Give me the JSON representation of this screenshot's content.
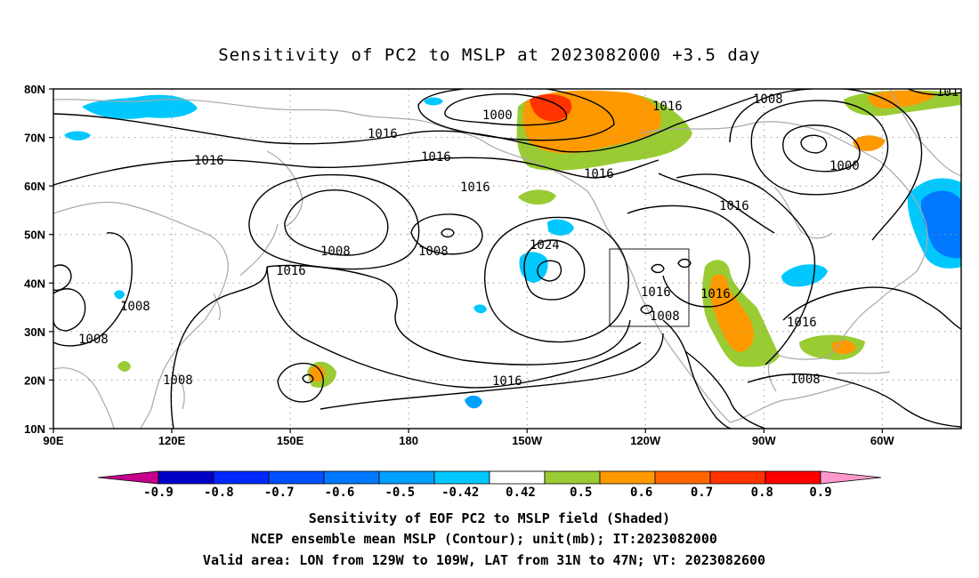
{
  "title": "Sensitivity of PC2 to MSLP at 2023082000 +3.5 day",
  "map": {
    "lat_ticks": [
      "80N",
      "70N",
      "60N",
      "50N",
      "40N",
      "30N",
      "20N",
      "10N"
    ],
    "lon_ticks": [
      "90E",
      "120E",
      "150E",
      "180",
      "150W",
      "120W",
      "90W",
      "60W"
    ],
    "contour_labels": [
      "1000",
      "1016",
      "1008",
      "1016",
      "1016",
      "1016",
      "1016",
      "1000",
      "1016",
      "1008",
      "1008",
      "1024",
      "1016",
      "1016",
      "1008",
      "1016",
      "1008",
      "1008",
      "1008",
      "1016",
      "1016",
      "1008",
      "101"
    ]
  },
  "colorbar": {
    "labels": [
      "-0.9",
      "-0.8",
      "-0.7",
      "-0.6",
      "-0.5",
      "-0.42",
      "0.42",
      "0.5",
      "0.6",
      "0.7",
      "0.8",
      "0.9"
    ],
    "colors": [
      "#c6008c",
      "#0000c8",
      "#0028ff",
      "#0050ff",
      "#0078ff",
      "#00a0ff",
      "#00c8ff",
      "#ffffff",
      "#99cc33",
      "#ff9900",
      "#ff6600",
      "#ff3300",
      "#ff0000",
      "#ff99cc"
    ]
  },
  "caption": {
    "line1": "Sensitivity of EOF PC2 to MSLP field (Shaded)",
    "line2": "NCEP ensemble mean MSLP (Contour); unit(mb); IT:2023082000",
    "line3": "Valid area: LON from 129W to 109W, LAT from 31N to 47N; VT: 2023082600"
  }
}
